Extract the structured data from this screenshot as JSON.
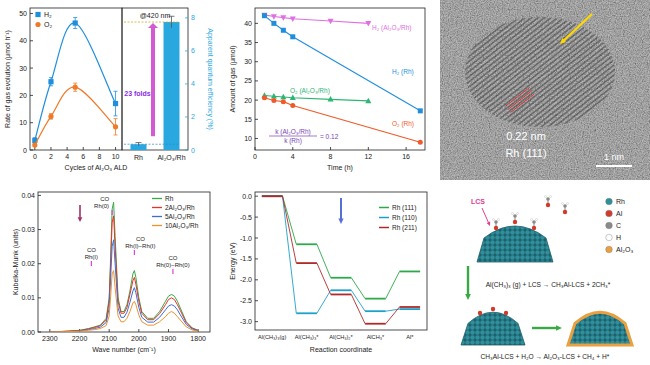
{
  "chart_data": [
    {
      "type": "scatter",
      "x_label": "Cycles of Al₂O₃ ALD",
      "y_label": "Rate of gas evolution (μmol h⁻¹)",
      "x": [
        0,
        2,
        5,
        10
      ],
      "series": [
        {
          "name": "H₂",
          "color": "#1f8fdc",
          "marker": "square",
          "values": [
            3.5,
            25,
            46.5,
            17
          ],
          "errors": [
            1,
            1.5,
            2,
            4.5
          ]
        },
        {
          "name": "O₂",
          "color": "#f07a28",
          "marker": "circle",
          "values": [
            1.8,
            12.3,
            23,
            8.5
          ],
          "errors": [
            0.5,
            1,
            1.5,
            3
          ]
        }
      ],
      "xlim": [
        -0.6,
        10.8
      ],
      "xticks": [
        0,
        2,
        4,
        6,
        8,
        10
      ],
      "ylim": [
        0,
        52
      ],
      "yticks": [
        0,
        10,
        20,
        30,
        40,
        50
      ],
      "legend": "upper left"
    },
    {
      "type": "bar",
      "categories": [
        "Rh",
        "Al₂O₃/Rh"
      ],
      "values": [
        0.35,
        7.75
      ],
      "errors": [
        0.1,
        0.35
      ],
      "color": "#29a8e0",
      "y_label": "Apparent quantum efficiency (%)",
      "ylim": [
        0,
        8.6
      ],
      "yticks": [
        0,
        2,
        4,
        6,
        8
      ],
      "wavelength_label": "@420 nm",
      "annotation": "23 folds"
    },
    {
      "type": "line",
      "x_label": "Time (h)",
      "y_label": "Amount of gas (μmol)",
      "series": [
        {
          "name": "H₂ (Al₂O₃/Rh)",
          "color": "#e070e0",
          "marker": "triangle-down",
          "x": [
            1,
            2,
            3,
            4,
            8,
            12
          ],
          "values": [
            42.2,
            41.8,
            41.5,
            41.2,
            40.6,
            40.0
          ]
        },
        {
          "name": "H₂ (Rh)",
          "color": "#1f8fdc",
          "marker": "square",
          "x": [
            1,
            2,
            3,
            4,
            17.5
          ],
          "values": [
            42,
            40,
            38.2,
            36.5,
            17.2
          ]
        },
        {
          "name": "O₂ (Al₂O₃/Rh)",
          "color": "#2bb673",
          "marker": "triangle-up",
          "x": [
            1,
            2,
            3,
            4,
            8,
            12
          ],
          "values": [
            21.2,
            21,
            20.8,
            20.6,
            20.2,
            19.8
          ]
        },
        {
          "name": "O₂ (Rh)",
          "color": "#f05a28",
          "marker": "circle",
          "x": [
            1,
            2,
            3,
            4,
            17.5
          ],
          "values": [
            20.6,
            19.9,
            19.6,
            18.6,
            9
          ]
        }
      ],
      "xlim": [
        0,
        18
      ],
      "xticks": [
        0,
        4,
        8,
        12,
        16
      ],
      "ylim": [
        7,
        44
      ],
      "yticks": [
        10,
        15,
        20,
        25,
        30,
        35,
        40
      ],
      "annotation": {
        "numerator": "k (Al₂O₃/Rh)",
        "denominator": "k (Rh)",
        "result": "= 0.12"
      }
    },
    {
      "type": "line",
      "x_label": "Wave number (cm⁻¹)",
      "y_label": "Kubelka-Munk (units)",
      "x": [
        2300,
        2250,
        2200,
        2170,
        2150,
        2130,
        2110,
        2100,
        2095,
        2090,
        2085,
        2080,
        2070,
        2060,
        2050,
        2040,
        2030,
        2020,
        2015,
        2010,
        2000,
        1990,
        1970,
        1950,
        1930,
        1910,
        1900,
        1890,
        1880,
        1870,
        1860,
        1840,
        1820,
        1800
      ],
      "series": [
        {
          "name": "Rh",
          "color": "#3aa845",
          "values": [
            0,
            0.0002,
            0.0005,
            0.001,
            0.0015,
            0.002,
            0.004,
            0.01,
            0.022,
            0.036,
            0.038,
            0.028,
            0.01,
            0.006,
            0.006,
            0.008,
            0.012,
            0.017,
            0.018,
            0.016,
            0.01,
            0.006,
            0.004,
            0.004,
            0.006,
            0.009,
            0.0105,
            0.011,
            0.0105,
            0.009,
            0.007,
            0.003,
            0.0012,
            0.0005
          ]
        },
        {
          "name": "2Al₂O₃/Rh",
          "color": "#e8332a",
          "values": [
            0,
            0.0002,
            0.0004,
            0.0009,
            0.0013,
            0.0018,
            0.0035,
            0.009,
            0.02,
            0.032,
            0.034,
            0.025,
            0.009,
            0.0055,
            0.0055,
            0.0072,
            0.011,
            0.015,
            0.016,
            0.014,
            0.009,
            0.0055,
            0.0036,
            0.0036,
            0.0054,
            0.008,
            0.0095,
            0.01,
            0.0095,
            0.008,
            0.0063,
            0.0027,
            0.0011,
            0.0004
          ]
        },
        {
          "name": "5Al₂O₃/Rh",
          "color": "#3b6fd8",
          "values": [
            0,
            0.0001,
            0.0003,
            0.0007,
            0.001,
            0.0014,
            0.0028,
            0.007,
            0.016,
            0.025,
            0.027,
            0.02,
            0.007,
            0.0043,
            0.0043,
            0.0058,
            0.0087,
            0.012,
            0.013,
            0.0115,
            0.0072,
            0.0043,
            0.0029,
            0.0029,
            0.0043,
            0.0065,
            0.0076,
            0.008,
            0.0076,
            0.0065,
            0.005,
            0.0022,
            0.0009,
            0.0003
          ]
        },
        {
          "name": "10Al₂O₃/Rh",
          "color": "#f0922a",
          "values": [
            0,
            0.0001,
            0.0002,
            0.0005,
            0.0007,
            0.001,
            0.0019,
            0.0047,
            0.0105,
            0.017,
            0.018,
            0.013,
            0.0047,
            0.003,
            0.003,
            0.004,
            0.006,
            0.0085,
            0.009,
            0.008,
            0.005,
            0.003,
            0.002,
            0.002,
            0.003,
            0.0045,
            0.0055,
            0.006,
            0.0055,
            0.0045,
            0.0035,
            0.0015,
            0.0006,
            0.0002
          ]
        }
      ],
      "xlim": [
        2340,
        1760
      ],
      "xticks": [
        2300,
        2200,
        2100,
        2000,
        1900,
        1800
      ],
      "ylim": [
        0,
        0.041
      ],
      "yticks": [
        {
          "value": 0,
          "label": "0.00"
        },
        0.01,
        0.02,
        0.03,
        0.04
      ],
      "legend": "upper right",
      "annotations": [
        {
          "label": "CO",
          "species": "Rh(0)",
          "x": 2090
        },
        {
          "label": "CO",
          "species": "Rh(I)",
          "x": 2160
        },
        {
          "label": "CO",
          "species": "Rh(I)−Rh(I)",
          "x": 2015
        },
        {
          "label": "CO",
          "species": "Rh(0)−Rh(0)",
          "x": 1885
        }
      ]
    },
    {
      "type": "energy_profile",
      "x_label": "Reaction coordinate",
      "y_label": "Energy (eV)",
      "categories": [
        "Al(CH₃)₃(g)",
        "Al(CH₃)₃*",
        "Al(CH₃)₂*",
        "AlCH₃*",
        "Al*"
      ],
      "series": [
        {
          "name": "Rh (111)",
          "color": "#2ea84a",
          "values": [
            0,
            -1.15,
            -1.95,
            -2.45,
            -1.8
          ]
        },
        {
          "name": "Rh (110)",
          "color": "#1fa0c8",
          "values": [
            0,
            -2.8,
            -2.25,
            -2.75,
            -2.7
          ]
        },
        {
          "name": "Rh (211)",
          "color": "#b02a2a",
          "values": [
            0,
            -1.6,
            -2.35,
            -3.05,
            -2.65
          ]
        }
      ],
      "ylim": [
        -3.2,
        0.1
      ],
      "yticks": [
        {
          "value": 0,
          "label": "0.0"
        },
        -0.5,
        {
          "value": -1,
          "label": "-1.0"
        },
        -1.5,
        {
          "value": -2,
          "label": "-2.0"
        },
        -2.5,
        {
          "value": -3,
          "label": "-3.0"
        }
      ],
      "legend": "upper right"
    }
  ],
  "tem_image": {
    "spacing_label": "0.22 nm",
    "facet_label": "Rh (111)",
    "scale_bar": "1 nm"
  },
  "schematic": {
    "legend": [
      {
        "label": "Rh",
        "color": "#2f8f9d"
      },
      {
        "label": "Al",
        "color": "#d43a2a"
      },
      {
        "label": "C",
        "color": "#8a8a8a"
      },
      {
        "label": "H",
        "color": "#ffffff"
      },
      {
        "label": "Al₂O₃",
        "color": "#e8a040"
      }
    ],
    "site_label": "LCS",
    "reactions": [
      "Al(CH₃)₃ (g) + LCS → CH₃Al-LCS + 2CH₃*",
      "CH₃Al-LCS + H₂O → Al₂O₃-LCS + CH₄ + H*"
    ]
  }
}
